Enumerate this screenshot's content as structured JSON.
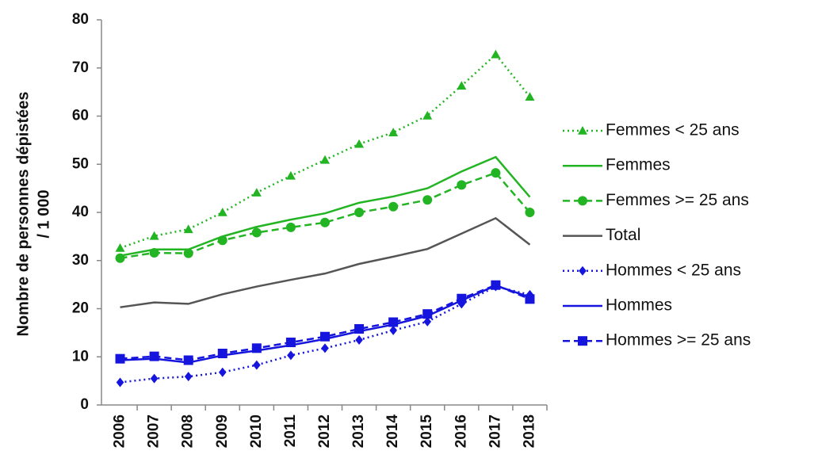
{
  "chart_data": {
    "type": "line",
    "y_label": [
      "Nombre de personnes dépistées",
      "/ 1 000"
    ],
    "categories": [
      "2006",
      "2007",
      "2008",
      "2009",
      "2010",
      "2011",
      "2012",
      "2013",
      "2014",
      "2015",
      "2016",
      "2017",
      "2018"
    ],
    "ylim": [
      0,
      80
    ],
    "yticks": [
      0,
      10,
      20,
      30,
      40,
      50,
      60,
      70,
      80
    ],
    "legend": "right",
    "series": [
      {
        "name": "Femmes < 25 ans",
        "color": "#22b422",
        "dash": "dotted",
        "marker": "triangle",
        "values": [
          32.6,
          35.1,
          36.5,
          40,
          44.1,
          47.6,
          50.9,
          54.2,
          56.6,
          60.1,
          66.3,
          72.8,
          64
        ]
      },
      {
        "name": "Femmes",
        "color": "#22b422",
        "dash": "solid",
        "marker": "none",
        "values": [
          31,
          32.3,
          32.3,
          35,
          37,
          38.5,
          39.8,
          42,
          43.3,
          45,
          48.5,
          51.5,
          43.2
        ]
      },
      {
        "name": "Femmes >= 25 ans",
        "color": "#22b422",
        "dash": "dashed",
        "marker": "circle",
        "values": [
          30.5,
          31.6,
          31.5,
          34.2,
          35.8,
          36.9,
          37.9,
          40,
          41.2,
          42.6,
          45.7,
          48.2,
          40
        ]
      },
      {
        "name": "Total",
        "color": "#555555",
        "dash": "solid",
        "marker": "none",
        "values": [
          20.3,
          21.3,
          21,
          23,
          24.6,
          26,
          27.3,
          29.3,
          30.8,
          32.4,
          35.6,
          38.8,
          33.3
        ]
      },
      {
        "name": "Hommes < 25 ans",
        "color": "#1515dd",
        "dash": "dotted",
        "marker": "diamond",
        "values": [
          4.7,
          5.5,
          5.9,
          6.8,
          8.3,
          10.3,
          11.8,
          13.5,
          15.5,
          17.3,
          21,
          24.6,
          22.9
        ]
      },
      {
        "name": "Hommes",
        "color": "#1515dd",
        "dash": "solid",
        "marker": "none",
        "values": [
          9.3,
          9.6,
          8.8,
          10.3,
          11.3,
          12.4,
          13.7,
          15.3,
          16.7,
          18.5,
          21.7,
          24.8,
          22.4
        ]
      },
      {
        "name": "Hommes >= 25 ans",
        "color": "#1515dd",
        "dash": "dashed",
        "marker": "square",
        "values": [
          9.6,
          10.1,
          9.3,
          10.7,
          11.8,
          13,
          14.2,
          15.8,
          17.2,
          18.9,
          22.1,
          24.9,
          22
        ]
      }
    ]
  }
}
